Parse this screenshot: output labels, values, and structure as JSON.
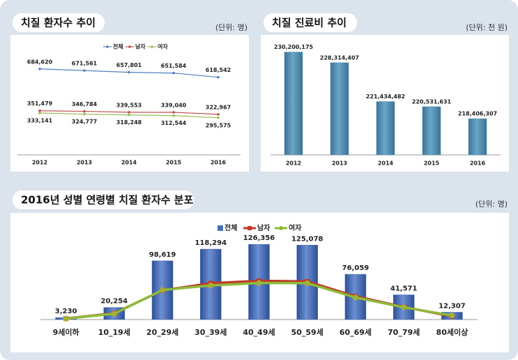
{
  "chart_data": [
    {
      "type": "line",
      "title": "치질 환자수 추이",
      "unit": "(단위: 명)",
      "categories": [
        "2012",
        "2013",
        "2014",
        "2015",
        "2016"
      ],
      "series": [
        {
          "name": "전체",
          "color": "#4f81bd",
          "values": [
            684620,
            671561,
            657801,
            651584,
            618542
          ],
          "value_labels": [
            "684,620",
            "671,561",
            "657,801",
            "651,584",
            "618,542"
          ]
        },
        {
          "name": "남자",
          "color": "#c0504d",
          "values": [
            351479,
            346784,
            339553,
            339040,
            322967
          ],
          "value_labels": [
            "351,479",
            "346,784",
            "339,553",
            "339,040",
            "322,967"
          ]
        },
        {
          "name": "여자",
          "color": "#9bbb59",
          "values": [
            333141,
            324777,
            318248,
            312544,
            295575
          ],
          "value_labels": [
            "333,141",
            "324,777",
            "318,248",
            "312,544",
            "295,575"
          ]
        }
      ],
      "ylim": [
        0,
        900000
      ]
    },
    {
      "type": "bar",
      "title": "치질 진료비 추이",
      "unit": "(단위: 천 원)",
      "categories": [
        "2012",
        "2013",
        "2014",
        "2015",
        "2016"
      ],
      "values": [
        230200175,
        228314407,
        221434482,
        220531631,
        218406307
      ],
      "value_labels": [
        "230,200,175",
        "228,314,407",
        "221,434,482",
        "220,531,631",
        "218,406,307"
      ],
      "color": "#4f8fb3",
      "ylim": [
        212000000,
        232000000
      ]
    },
    {
      "type": "combo",
      "title": "2016년 성별 연령별 치질 환자수 분포",
      "unit": "(단위: 명)",
      "categories": [
        "9세이하",
        "10_19세",
        "20_29세",
        "30_39세",
        "40_49세",
        "50_59세",
        "60_69세",
        "70_79세",
        "80세이상"
      ],
      "series": [
        {
          "name": "전체",
          "type": "bar",
          "color": "#4a6fb8",
          "values": [
            3230,
            20254,
            98619,
            118294,
            126356,
            125078,
            76059,
            41571,
            12307
          ],
          "value_labels": [
            "3,230",
            "20,254",
            "98,619",
            "118,294",
            "126,356",
            "125,078",
            "76,059",
            "41,571",
            "12,307"
          ]
        },
        {
          "name": "남자",
          "type": "line",
          "color": "#c0392b",
          "values": [
            1700,
            10500,
            49000,
            61000,
            65000,
            64000,
            39000,
            21000,
            5500
          ]
        },
        {
          "name": "여자",
          "type": "line",
          "color": "#8dbb3a",
          "values": [
            1530,
            9754,
            49619,
            57294,
            61356,
            61078,
            37059,
            20571,
            6807
          ]
        }
      ],
      "ylim": [
        0,
        150000
      ]
    }
  ]
}
